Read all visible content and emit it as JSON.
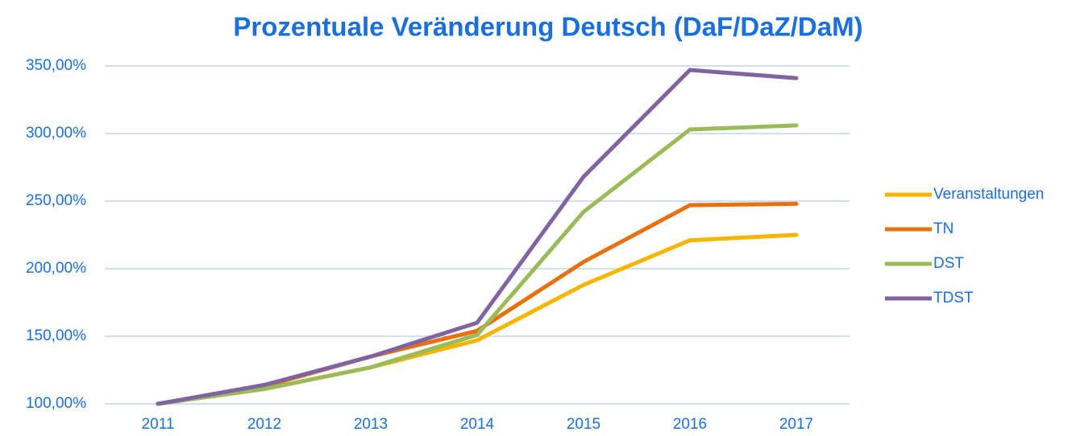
{
  "chart_data": {
    "type": "line",
    "title": "Prozentuale Veränderung Deutsch (DaF/DaZ/DaM)",
    "categories": [
      "2011",
      "2012",
      "2013",
      "2014",
      "2015",
      "2016",
      "2017"
    ],
    "series": [
      {
        "name": "Veranstaltungen",
        "color": "#f7b500",
        "values": [
          100,
          111,
          127,
          147,
          188,
          221,
          225
        ]
      },
      {
        "name": "TN",
        "color": "#e8700f",
        "values": [
          100,
          113,
          135,
          154,
          205,
          247,
          248
        ]
      },
      {
        "name": "DST",
        "color": "#9bbb59",
        "values": [
          100,
          111,
          127,
          151,
          242,
          303,
          306
        ]
      },
      {
        "name": "TDST",
        "color": "#8064a2",
        "values": [
          100,
          114,
          135,
          160,
          268,
          347,
          341
        ]
      }
    ],
    "ylim": [
      100,
      350
    ],
    "yticks": [
      {
        "value": 100,
        "label": "100,00%"
      },
      {
        "value": 150,
        "label": "150,00%"
      },
      {
        "value": 200,
        "label": "200,00%"
      },
      {
        "value": 250,
        "label": "250,00%"
      },
      {
        "value": 300,
        "label": "300,00%"
      },
      {
        "value": 350,
        "label": "350,00%"
      }
    ],
    "grid": true,
    "legend": "right"
  }
}
